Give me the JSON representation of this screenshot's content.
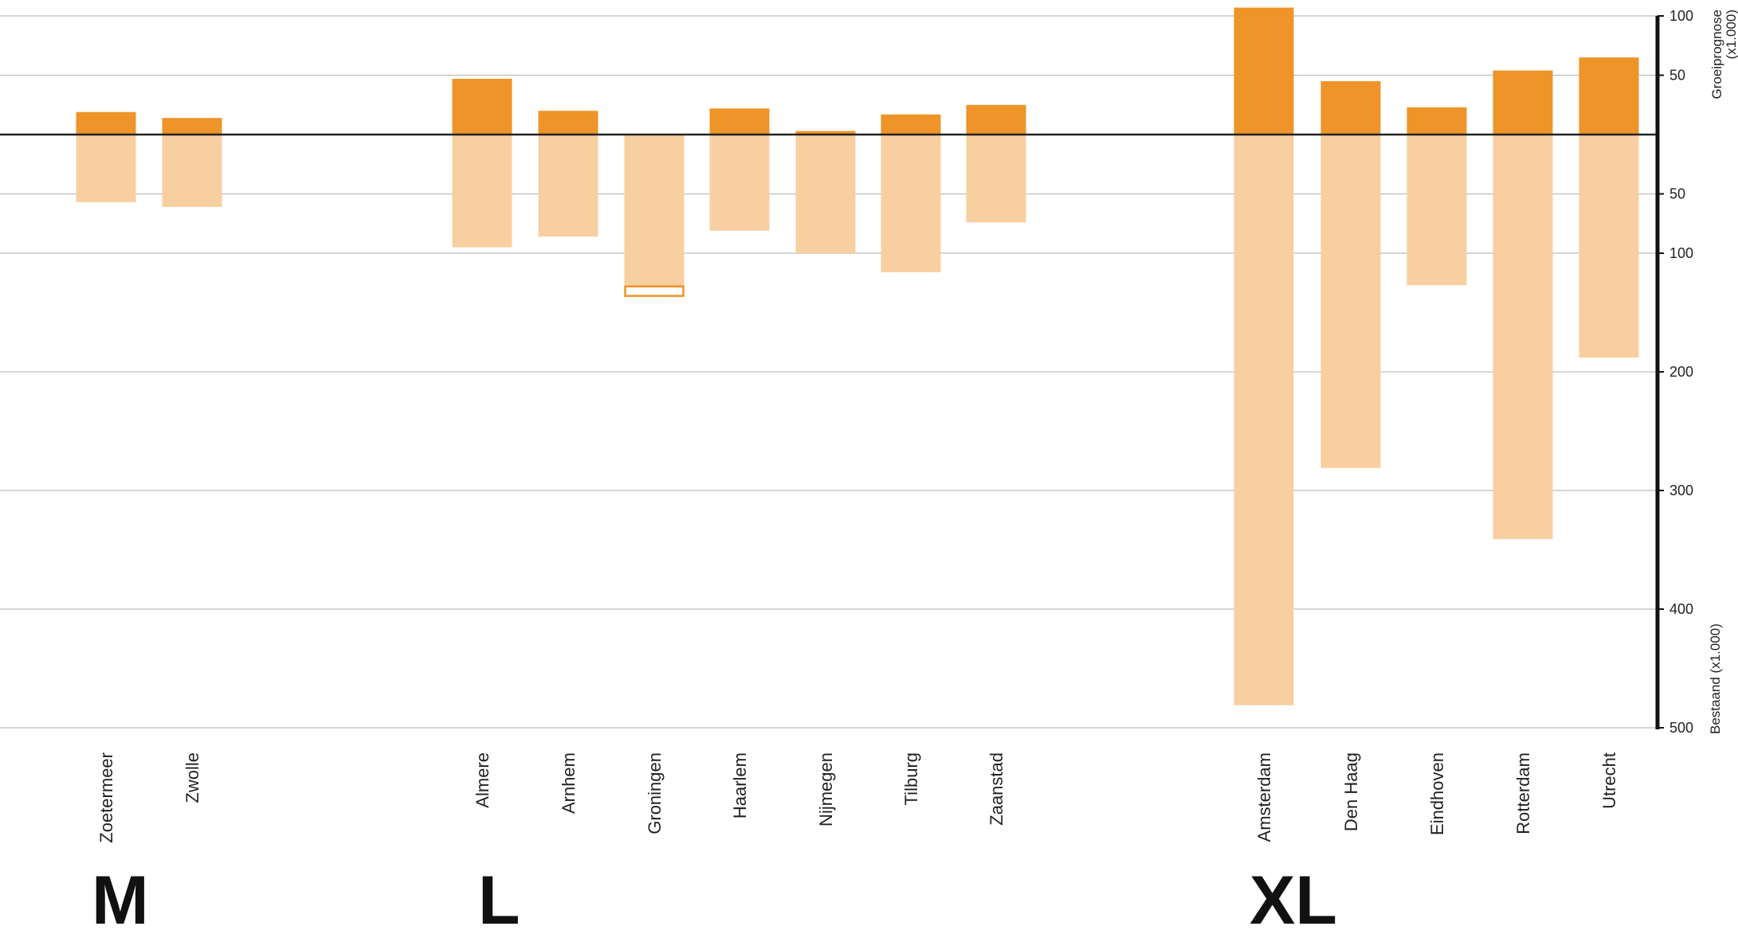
{
  "colors": {
    "growth": "#ee9428",
    "stock": "#f8cfa0",
    "gridline": "#bdbdbd",
    "baseline": "#222222",
    "axis": "#111111",
    "text": "#222222",
    "outline_marker": "#ee9428"
  },
  "chart_data": {
    "type": "bar",
    "layout": "diverging",
    "axis_top_label": "Groeiprognose",
    "axis_top_unit": "(x1.000)",
    "axis_bottom_label": "Bestaand (x1.000)",
    "ylim_top": [
      0,
      100
    ],
    "ylim_bottom": [
      0,
      500
    ],
    "ticks_top": [
      {
        "value": 100,
        "label": "100"
      },
      {
        "value": 50,
        "label": "50"
      }
    ],
    "ticks_bottom": [
      {
        "value": 50,
        "label": "50"
      },
      {
        "value": 100,
        "label": "100"
      },
      {
        "value": 200,
        "label": "200"
      },
      {
        "value": 300,
        "label": "300"
      },
      {
        "value": 400,
        "label": "400"
      },
      {
        "value": 500,
        "label": "500"
      }
    ],
    "grid": true,
    "series": [
      {
        "key": "growth",
        "color": "#ee9428"
      },
      {
        "key": "stock",
        "color": "#f8cfa0"
      }
    ],
    "groups": [
      {
        "label": "M",
        "cities": [
          {
            "name": "Zoetermeer",
            "growth": 19,
            "stock": 57
          },
          {
            "name": "Zwolle",
            "growth": 14,
            "stock": 61
          }
        ]
      },
      {
        "label": "L",
        "cities": [
          {
            "name": "Almere",
            "growth": 47,
            "stock": 95
          },
          {
            "name": "Arnhem",
            "growth": 20,
            "stock": 86
          },
          {
            "name": "Groningen",
            "growth": 0,
            "stock": 128,
            "extra_outline": [
              128,
              136
            ]
          },
          {
            "name": "Haarlem",
            "growth": 22,
            "stock": 81
          },
          {
            "name": "Nijmegen",
            "growth": 3,
            "stock": 100
          },
          {
            "name": "Tilburg",
            "growth": 17,
            "stock": 116
          },
          {
            "name": "Zaanstad",
            "growth": 25,
            "stock": 74
          }
        ]
      },
      {
        "label": "XL",
        "cities": [
          {
            "name": "Amsterdam",
            "growth": 107,
            "stock": 481
          },
          {
            "name": "Den Haag",
            "growth": 45,
            "stock": 281
          },
          {
            "name": "Eindhoven",
            "growth": 23,
            "stock": 127
          },
          {
            "name": "Rotterdam",
            "growth": 54,
            "stock": 341
          },
          {
            "name": "Utrecht",
            "growth": 65,
            "stock": 188
          }
        ]
      }
    ]
  }
}
